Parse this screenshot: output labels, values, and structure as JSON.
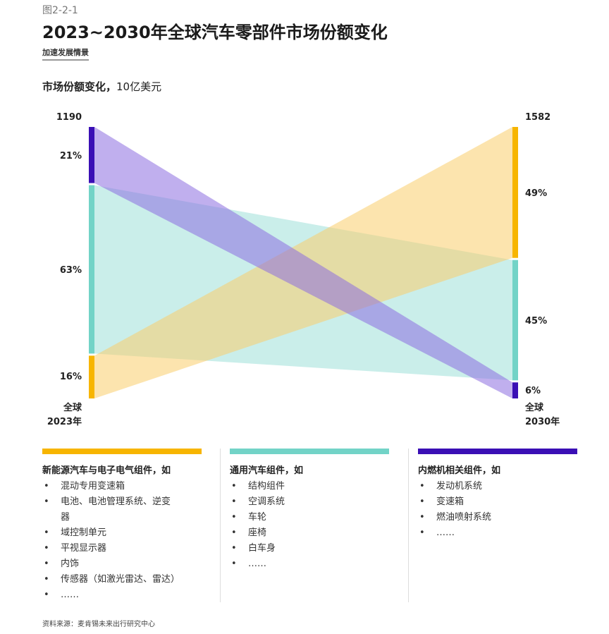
{
  "figure_label": "图2-2-1",
  "title": "2023~2030年全球汽车零部件市场份额变化",
  "subtitle": "加速发展情景",
  "unit_bold": "市场份额变化，",
  "unit_rest": "10亿美元",
  "chart_data": {
    "type": "sankey",
    "title": "市场份额变化，10亿美元",
    "left": {
      "label": [
        "全球",
        "2023年"
      ],
      "total": 1190,
      "total_label": "1190"
    },
    "right": {
      "label": [
        "全球",
        "2030年"
      ],
      "total": 1582,
      "total_label": "1582"
    },
    "series": [
      {
        "name": "内燃机相关组件",
        "color": "#3a0fb5",
        "flow": "#8c6ee0",
        "left_pct": 21,
        "right_pct": 6,
        "left_label": "21%",
        "right_label": "6%"
      },
      {
        "name": "通用汽车组件",
        "color": "#72d3c7",
        "flow": "#9fe0d8",
        "left_pct": 63,
        "right_pct": 45,
        "left_label": "63%",
        "right_label": "45%"
      },
      {
        "name": "新能源汽车与电子电气组件",
        "color": "#f7b500",
        "flow": "#f9cd6c",
        "left_pct": 16,
        "right_pct": 49,
        "left_label": "16%",
        "right_label": "49%"
      }
    ]
  },
  "legend": [
    {
      "color": "#f7b500",
      "heading": "新能源汽车与电子电气组件，如",
      "items": [
        "混动专用变速箱",
        "电池、电池管理系统、逆变器",
        "域控制单元",
        "平视显示器",
        "内饰",
        "传感器（如激光雷达、雷达）",
        "……"
      ]
    },
    {
      "color": "#72d3c7",
      "heading": "通用汽车组件，如",
      "items": [
        "结构组件",
        "空调系统",
        "车轮",
        "座椅",
        "白车身",
        "……"
      ]
    },
    {
      "color": "#3a0fb5",
      "heading": "内燃机相关组件，如",
      "items": [
        "发动机系统",
        "变速箱",
        "燃油喷射系统",
        "……"
      ]
    }
  ],
  "source": "资料来源：麦肯锡未来出行研究中心"
}
